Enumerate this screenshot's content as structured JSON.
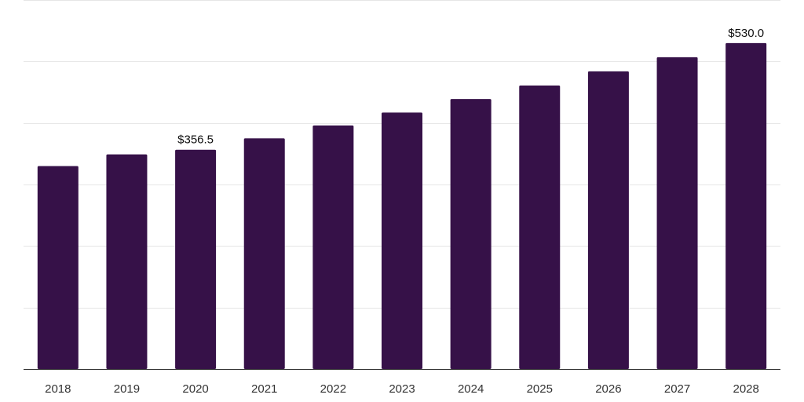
{
  "chart_data": {
    "type": "bar",
    "title": "",
    "xlabel": "",
    "ylabel": "",
    "categories": [
      "2018",
      "2019",
      "2020",
      "2021",
      "2022",
      "2023",
      "2024",
      "2025",
      "2026",
      "2027",
      "2028"
    ],
    "values": [
      330.0,
      349.0,
      356.5,
      375.0,
      396.0,
      417.0,
      439.0,
      461.0,
      484.0,
      507.0,
      530.0
    ],
    "data_labels": [
      {
        "index": 2,
        "text": "$356.5"
      },
      {
        "index": 10,
        "text": "$530.0"
      }
    ],
    "ylim": [
      0,
      600
    ],
    "y_gridlines": [
      0,
      100,
      200,
      300,
      400,
      500,
      600
    ],
    "grid": true,
    "legend": "none",
    "colors": {
      "bar": "#361148",
      "grid": "#e6e6e6",
      "axis": "#333333"
    }
  }
}
